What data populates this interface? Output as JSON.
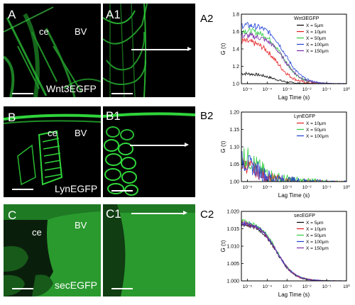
{
  "panels": {
    "A": {
      "letter": "A",
      "regions": [
        "ce",
        "BV"
      ],
      "marker": "Wnt3EGFP"
    },
    "A1": {
      "letter": "A1"
    },
    "A2": {
      "letter": "A2"
    },
    "B": {
      "letter": "B",
      "regions": [
        "ce",
        "BV"
      ],
      "marker": "LynEGFP"
    },
    "B1": {
      "letter": "B1"
    },
    "B2": {
      "letter": "B2"
    },
    "C": {
      "letter": "C",
      "regions": [
        "ce",
        "BV"
      ],
      "marker": "secEGFP"
    },
    "C1": {
      "letter": "C1"
    },
    "C2": {
      "letter": "C2"
    }
  },
  "colors": {
    "fluorescence": "#2fd43a",
    "background": "#000000"
  },
  "chart_data": [
    {
      "type": "line",
      "title": "Wnt3EGFP",
      "xlabel": "Lag Time (s)",
      "ylabel": "G (τ)",
      "x_scale": "log",
      "xlim": [
        5e-06,
        1
      ],
      "ylim": [
        1.0,
        1.8
      ],
      "xticks": [
        "10⁻⁵",
        "10⁻⁴",
        "10⁻³",
        "10⁻²",
        "10⁻¹",
        "10⁰"
      ],
      "yticks": [
        "1.0",
        "1.2",
        "1.4",
        "1.6",
        "1.8"
      ],
      "legend_position": "top-right",
      "series": [
        {
          "name": "X = 5μm",
          "color": "#000000",
          "g0": 1.12,
          "tau": 0.0002,
          "noise": 0.02
        },
        {
          "name": "X = 10μm",
          "color": "#e41a1c",
          "g0": 1.5,
          "tau": 0.0003,
          "noise": 0.04
        },
        {
          "name": "X = 50μm",
          "color": "#2ecc40",
          "g0": 1.62,
          "tau": 0.0006,
          "noise": 0.04
        },
        {
          "name": "X = 100μm",
          "color": "#1f3fd6",
          "g0": 1.68,
          "tau": 0.0008,
          "noise": 0.04
        },
        {
          "name": "X = 150μm",
          "color": "#7a2aa8",
          "g0": 1.56,
          "tau": 0.0007,
          "noise": 0.04
        }
      ]
    },
    {
      "type": "line",
      "title": "LynEGFP",
      "xlabel": "Lag Time (s)",
      "ylabel": "G (τ)",
      "x_scale": "log",
      "xlim": [
        5e-06,
        1
      ],
      "ylim": [
        1.0,
        1.2
      ],
      "xticks": [
        "10⁻⁵",
        "10⁻⁴",
        "10⁻³",
        "10⁻²",
        "10⁻¹",
        "10⁰"
      ],
      "yticks": [
        "1.00",
        "1.05",
        "1.10",
        "1.15",
        "1.20"
      ],
      "legend_position": "top-right",
      "series": [
        {
          "name": "X = 10μm",
          "color": "#e41a1c",
          "g0": 1.06,
          "tau": 3e-05,
          "noise": 0.025
        },
        {
          "name": "X = 50μm",
          "color": "#2ecc40",
          "g0": 1.09,
          "tau": 3e-05,
          "noise": 0.035
        },
        {
          "name": "X = 100μm",
          "color": "#1f3fd6",
          "g0": 1.07,
          "tau": 3e-05,
          "noise": 0.03
        }
      ]
    },
    {
      "type": "line",
      "title": "secEGFP",
      "xlabel": "Lag Time (s)",
      "ylabel": "G (τ)",
      "x_scale": "log",
      "xlim": [
        5e-06,
        1
      ],
      "ylim": [
        1.0,
        1.02
      ],
      "xticks": [
        "10⁻⁵",
        "10⁻⁴",
        "10⁻³",
        "10⁻²",
        "10⁻¹",
        "10⁰"
      ],
      "yticks": [
        "1.000",
        "1.005",
        "1.010",
        "1.015",
        "1.020"
      ],
      "legend_position": "top-right",
      "series": [
        {
          "name": "X = 5μm",
          "color": "#000000",
          "g0": 1.0165,
          "tau": 0.0003,
          "noise": 0.0006
        },
        {
          "name": "X = 10μm",
          "color": "#e41a1c",
          "g0": 1.017,
          "tau": 0.0003,
          "noise": 0.0006
        },
        {
          "name": "X = 50μm",
          "color": "#2ecc40",
          "g0": 1.0175,
          "tau": 0.0003,
          "noise": 0.0006
        },
        {
          "name": "X = 100μm",
          "color": "#1f3fd6",
          "g0": 1.017,
          "tau": 0.0003,
          "noise": 0.0006
        },
        {
          "name": "X = 150μm",
          "color": "#7a2aa8",
          "g0": 1.0168,
          "tau": 0.0003,
          "noise": 0.0006
        }
      ]
    }
  ]
}
